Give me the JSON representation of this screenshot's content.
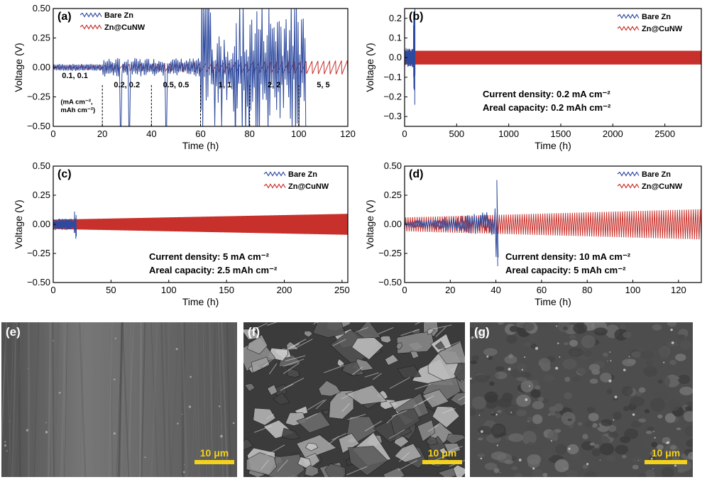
{
  "chart_data": [
    {
      "panel": "(a)",
      "type": "line",
      "xlabel": "Time (h)",
      "ylabel": "Voltage (V)",
      "xlim": [
        0,
        120
      ],
      "ylim": [
        -0.5,
        0.5
      ],
      "xticks": [
        0,
        20,
        40,
        60,
        80,
        100,
        120
      ],
      "yticks": [
        "0.50",
        "0.25",
        "0.00",
        "−0.25",
        "−0.50"
      ],
      "legend": "top-left",
      "series": [
        {
          "name": "Bare Zn",
          "color": "#2e4a9e",
          "x": [
            0,
            20,
            40,
            60,
            80,
            100
          ],
          "amplitude": [
            0.02,
            0.05,
            0.07,
            0.5,
            0.5,
            0.5
          ]
        },
        {
          "name": "Zn@CuNW",
          "color": "#c8302b",
          "x": [
            0,
            120
          ],
          "amplitude": [
            0.015,
            0.06
          ]
        }
      ],
      "segments": [
        {
          "text": "0.1, 0.1",
          "x": 10
        },
        {
          "text": "0.2, 0.2",
          "x": 30
        },
        {
          "text": "0.5, 0.5",
          "x": 50
        },
        {
          "text": "1, 1",
          "x": 70
        },
        {
          "text": "2, 2",
          "x": 90
        },
        {
          "text": "5, 5",
          "x": 110
        }
      ],
      "unit_lines": [
        "(mA cm⁻²,",
        "mAh cm⁻²)"
      ],
      "dividers": [
        20,
        40,
        60,
        80,
        100
      ]
    },
    {
      "panel": "(b)",
      "type": "line",
      "xlabel": "Time (h)",
      "ylabel": "Voltage (V)",
      "xlim": [
        0,
        2850
      ],
      "ylim": [
        -0.35,
        0.25
      ],
      "xticks": [
        0,
        500,
        1000,
        1500,
        2000,
        2500
      ],
      "yticks": [
        "0.2",
        "0.1",
        "0.0",
        "−0.1",
        "−0.2",
        "−0.3"
      ],
      "legend": "top-right",
      "series": [
        {
          "name": "Bare Zn",
          "color": "#2e4a9e",
          "x_end": 100,
          "amplitude_max": 0.3
        },
        {
          "name": "Zn@CuNW",
          "color": "#c8302b",
          "x_end": 2850,
          "amplitude": 0.035
        }
      ],
      "annotations": [
        "Current density: 0.2 mA cm⁻²",
        "Areal capacity: 0.2 mAh cm⁻²"
      ]
    },
    {
      "panel": "(c)",
      "type": "line",
      "xlabel": "Time (h)",
      "ylabel": "Voltage (V)",
      "xlim": [
        0,
        255
      ],
      "ylim": [
        -0.5,
        0.5
      ],
      "xticks": [
        0,
        50,
        100,
        150,
        200,
        250
      ],
      "yticks": [
        "0.50",
        "0.25",
        "0.00",
        "−0.25",
        "−0.50"
      ],
      "legend": "top-right",
      "series": [
        {
          "name": "Bare Zn",
          "color": "#2e4a9e",
          "x_end": 20,
          "amplitude_max": 0.1
        },
        {
          "name": "Zn@CuNW",
          "color": "#c8302b",
          "x_end": 255,
          "amplitude": [
            0.04,
            0.09
          ]
        }
      ],
      "annotations": [
        "Current density: 5 mA cm⁻²",
        "Areal capacity: 2.5 mAh cm⁻²"
      ]
    },
    {
      "panel": "(d)",
      "type": "line",
      "xlabel": "Time (h)",
      "ylabel": "Voltage (V)",
      "xlim": [
        0,
        130
      ],
      "ylim": [
        -0.5,
        0.5
      ],
      "xticks": [
        0,
        20,
        40,
        60,
        80,
        100,
        120
      ],
      "yticks": [
        "0.50",
        "0.25",
        "0.00",
        "−0.25",
        "−0.50"
      ],
      "legend": "top-right",
      "series": [
        {
          "name": "Bare Zn",
          "color": "#2e4a9e",
          "x_end": 41,
          "amplitude_max": 0.38
        },
        {
          "name": "Zn@CuNW",
          "color": "#c8302b",
          "x_end": 130,
          "amplitude": [
            0.06,
            0.13
          ]
        }
      ],
      "annotations": [
        "Current density: 10 mA cm⁻²",
        "Areal capacity: 5 mAh cm⁻²"
      ]
    }
  ],
  "images": [
    {
      "panel": "(e)",
      "scalebar": "10 μm"
    },
    {
      "panel": "(f)",
      "scalebar": "10 μm"
    },
    {
      "panel": "(g)",
      "scalebar": "10 μm"
    }
  ]
}
